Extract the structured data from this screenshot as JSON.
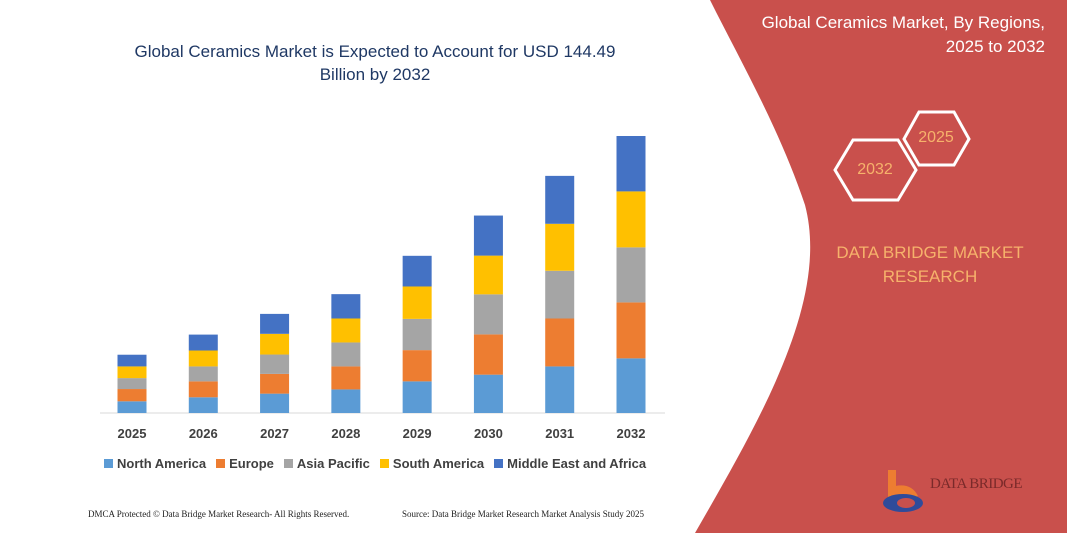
{
  "header": {
    "title_line1": "Global Ceramics Market is Expected to Account for USD 144.49",
    "title_line2": "Billion by 2032"
  },
  "side_panel": {
    "title_line1": "Global Ceramics Market, By Regions,",
    "title_line2": "2025 to 2032",
    "hex_start": "2025",
    "hex_end": "2032",
    "brand_line1": "DATA BRIDGE MARKET",
    "brand_line2": "RESEARCH",
    "logo_text": "DATA BRIDGE",
    "panel_color": "#C9504C"
  },
  "footer": {
    "copyright": "DMCA Protected © Data Bridge Market Research- All Rights Reserved.",
    "source": "Source: Data Bridge Market Research  Market Analysis Study 2025"
  },
  "chart_data": {
    "type": "bar",
    "stacked": true,
    "title": "Global Ceramics Market is Expected to Account for USD 144.49 Billion by 2032",
    "xlabel": "",
    "ylabel": "",
    "ylim": [
      0,
      150
    ],
    "grid": false,
    "legend_position": "bottom",
    "categories": [
      "2025",
      "2026",
      "2027",
      "2028",
      "2029",
      "2030",
      "2031",
      "2032"
    ],
    "series": [
      {
        "name": "North America",
        "color": "#5B9BD5",
        "values": [
          6.1,
          8.2,
          10.1,
          12.3,
          16.5,
          20.0,
          24.3,
          28.5
        ]
      },
      {
        "name": "Europe",
        "color": "#ED7D31",
        "values": [
          6.4,
          8.3,
          10.3,
          12.0,
          16.3,
          21.0,
          25.0,
          29.2
        ]
      },
      {
        "name": "Asia Pacific",
        "color": "#A5A5A5",
        "values": [
          5.7,
          7.8,
          10.1,
          12.5,
          16.3,
          20.9,
          24.9,
          28.7
        ]
      },
      {
        "name": "South America",
        "color": "#FFC000",
        "values": [
          6.1,
          8.3,
          10.8,
          12.5,
          16.9,
          20.2,
          24.5,
          29.2
        ]
      },
      {
        "name": "Middle East and Africa",
        "color": "#4472C4",
        "values": [
          6.1,
          8.3,
          10.4,
          12.7,
          16.0,
          20.9,
          25.0,
          28.9
        ]
      }
    ]
  }
}
